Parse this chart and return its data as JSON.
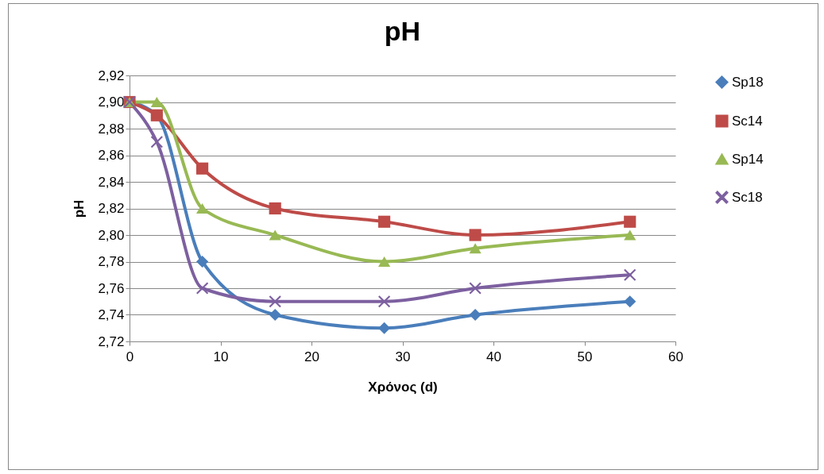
{
  "chart_data": {
    "type": "line",
    "title": "pH",
    "xlabel": "Χρόνος (d)",
    "ylabel": "pH",
    "x": [
      0,
      3,
      8,
      16,
      28,
      38,
      55
    ],
    "series": [
      {
        "name": "Sp18",
        "color": "#4a7ebb",
        "marker": "diamond",
        "values": [
          2.9,
          2.89,
          2.78,
          2.74,
          2.73,
          2.74,
          2.75
        ]
      },
      {
        "name": "Sc14",
        "color": "#be4b48",
        "marker": "square",
        "values": [
          2.9,
          2.89,
          2.85,
          2.82,
          2.81,
          2.8,
          2.81
        ]
      },
      {
        "name": "Sp14",
        "color": "#98b954",
        "marker": "triangle",
        "values": [
          2.9,
          2.9,
          2.82,
          2.8,
          2.78,
          2.79,
          2.8
        ]
      },
      {
        "name": "Sc18",
        "color": "#7d60a0",
        "marker": "cross",
        "values": [
          2.9,
          2.87,
          2.76,
          2.75,
          2.75,
          2.76,
          2.77
        ]
      }
    ],
    "xlim": [
      0,
      60
    ],
    "xticks": [
      0,
      10,
      20,
      30,
      40,
      50,
      60
    ],
    "ylim": [
      2.72,
      2.92
    ],
    "yticks": [
      {
        "value": 2.72,
        "label": "2,72"
      },
      {
        "value": 2.74,
        "label": "2,74"
      },
      {
        "value": 2.76,
        "label": "2,76"
      },
      {
        "value": 2.78,
        "label": "2,78"
      },
      {
        "value": 2.8,
        "label": "2,80"
      },
      {
        "value": 2.82,
        "label": "2,82"
      },
      {
        "value": 2.84,
        "label": "2,84"
      },
      {
        "value": 2.86,
        "label": "2,86"
      },
      {
        "value": 2.88,
        "label": "2,88"
      },
      {
        "value": 2.9,
        "label": "2,90"
      },
      {
        "value": 2.92,
        "label": "2,92"
      }
    ],
    "grid": "y",
    "legend": "right"
  }
}
